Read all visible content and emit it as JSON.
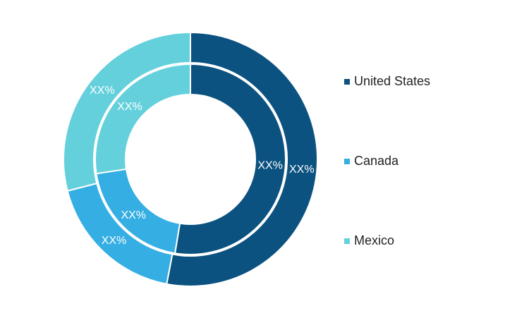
{
  "chart_data": {
    "type": "donut",
    "categories": [
      "United States",
      "Canada",
      "Mexico"
    ],
    "colors": [
      "#0b5280",
      "#35aee3",
      "#64d0dc"
    ],
    "series": [
      {
        "values": [
          53,
          18,
          29
        ],
        "value_labels": [
          "XX%",
          "XX%",
          "XX%"
        ]
      },
      {
        "values": [
          52.6,
          20,
          27.4
        ],
        "value_labels": [
          "XX%",
          "XX%",
          "XX%"
        ]
      }
    ],
    "legend": "right"
  }
}
